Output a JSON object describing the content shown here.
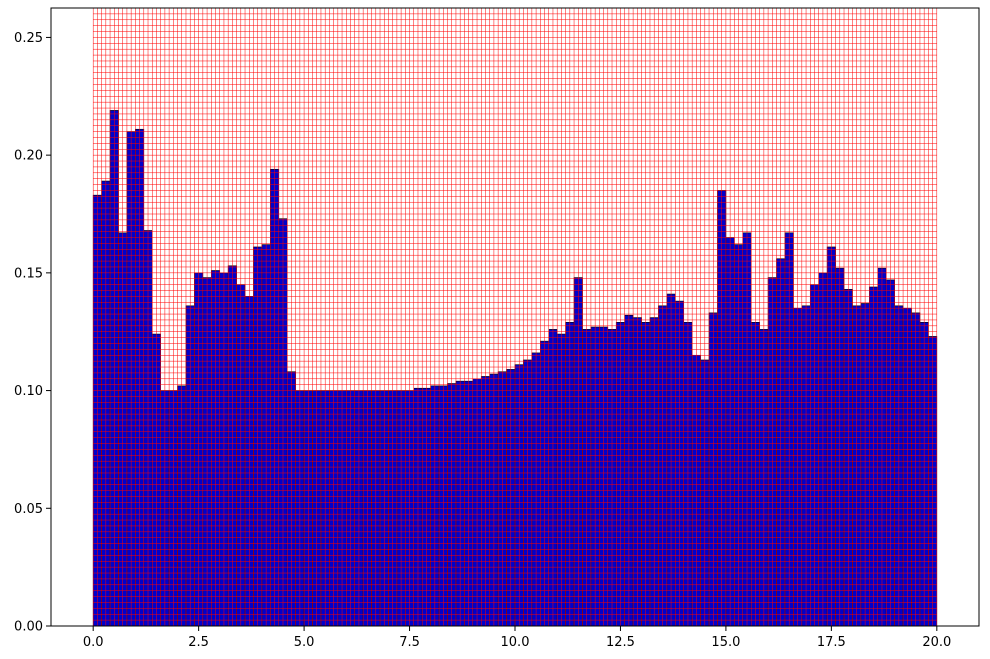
{
  "chart_data": {
    "type": "bar",
    "title": "",
    "xlabel": "",
    "ylabel": "",
    "xlim": [
      -1.0,
      21.0
    ],
    "ylim": [
      0.0,
      0.2625
    ],
    "bin_width": 0.2,
    "bin_start": 0.0,
    "x_ticks": [
      0.0,
      2.5,
      5.0,
      7.5,
      10.0,
      12.5,
      15.0,
      17.5,
      20.0
    ],
    "x_tick_labels": [
      "0.0",
      "2.5",
      "5.0",
      "7.5",
      "10.0",
      "12.5",
      "15.0",
      "17.5",
      "20.0"
    ],
    "y_ticks": [
      0.0,
      0.05,
      0.1,
      0.15,
      0.2,
      0.25
    ],
    "y_tick_labels": [
      "0.00",
      "0.05",
      "0.10",
      "0.15",
      "0.20",
      "0.25"
    ],
    "grid": "on",
    "colors": {
      "bar_fill": "#0000cc",
      "bar_edge": "#000000",
      "grid": "#ff0000"
    },
    "values": [
      0.183,
      0.189,
      0.219,
      0.167,
      0.21,
      0.211,
      0.168,
      0.124,
      0.1,
      0.1,
      0.102,
      0.136,
      0.15,
      0.148,
      0.151,
      0.15,
      0.153,
      0.145,
      0.14,
      0.161,
      0.162,
      0.194,
      0.173,
      0.108,
      0.1,
      0.1,
      0.1,
      0.1,
      0.1,
      0.1,
      0.1,
      0.1,
      0.1,
      0.1,
      0.1,
      0.1,
      0.1,
      0.1,
      0.101,
      0.101,
      0.102,
      0.102,
      0.103,
      0.104,
      0.104,
      0.105,
      0.106,
      0.107,
      0.108,
      0.109,
      0.111,
      0.113,
      0.116,
      0.121,
      0.126,
      0.124,
      0.129,
      0.148,
      0.126,
      0.127,
      0.127,
      0.126,
      0.129,
      0.132,
      0.131,
      0.129,
      0.131,
      0.136,
      0.141,
      0.138,
      0.129,
      0.115,
      0.113,
      0.133,
      0.185,
      0.165,
      0.162,
      0.167,
      0.129,
      0.126,
      0.148,
      0.156,
      0.167,
      0.135,
      0.136,
      0.145,
      0.15,
      0.161,
      0.152,
      0.143,
      0.136,
      0.137,
      0.144,
      0.152,
      0.147,
      0.136,
      0.135,
      0.133,
      0.129,
      0.123
    ]
  }
}
